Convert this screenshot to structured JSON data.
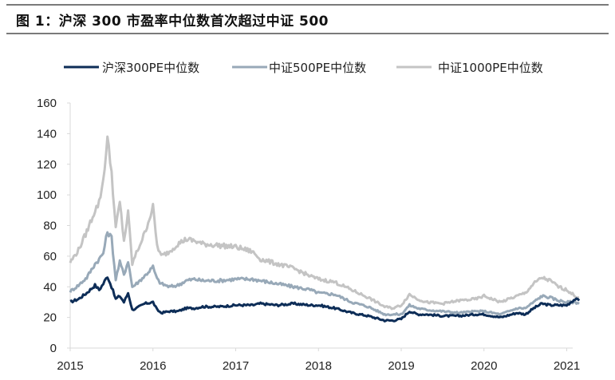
{
  "figure": {
    "title": "图 1：沪深 300 市盈率中位数首次超过中证 500"
  },
  "chart_data": {
    "type": "line",
    "title": "图 1：沪深 300 市盈率中位数首次超过中证 500",
    "xlabel": "",
    "ylabel": "",
    "xlim": [
      2015,
      2021.2
    ],
    "ylim": [
      0,
      160
    ],
    "y_ticks": [
      "0",
      "20",
      "40",
      "60",
      "80",
      "100",
      "120",
      "140",
      "160"
    ],
    "x_ticks": [
      "2015",
      "2016",
      "2017",
      "2018",
      "2019",
      "2020",
      "2021"
    ],
    "legend_position": "top",
    "grid": false,
    "x": [
      2015.0,
      2015.1,
      2015.2,
      2015.3,
      2015.35,
      2015.4,
      2015.45,
      2015.5,
      2015.55,
      2015.6,
      2015.65,
      2015.7,
      2015.75,
      2015.8,
      2015.9,
      2016.0,
      2016.05,
      2016.1,
      2016.2,
      2016.3,
      2016.4,
      2016.5,
      2016.6,
      2016.8,
      2017.0,
      2017.2,
      2017.3,
      2017.5,
      2017.7,
      2017.9,
      2018.0,
      2018.2,
      2018.4,
      2018.6,
      2018.8,
      2018.9,
      2019.0,
      2019.1,
      2019.2,
      2019.3,
      2019.5,
      2019.7,
      2019.9,
      2020.0,
      2020.2,
      2020.4,
      2020.5,
      2020.6,
      2020.7,
      2020.8,
      2020.9,
      2021.0,
      2021.1,
      2021.15
    ],
    "series": [
      {
        "name": "沪深300PE中位数",
        "color": "#0d2d57",
        "values": [
          30,
          32,
          36,
          41,
          38,
          42,
          47,
          40,
          32,
          34,
          30,
          36,
          25,
          26,
          29,
          30,
          25,
          23,
          24,
          24,
          26,
          26,
          27,
          27,
          28,
          28,
          29,
          28,
          29,
          28,
          28,
          26,
          23,
          21,
          18,
          18,
          19,
          24,
          22,
          22,
          21,
          21,
          22,
          22,
          20,
          23,
          22,
          26,
          29,
          28,
          28,
          28,
          32,
          31
        ]
      },
      {
        "name": "中证500PE中位数",
        "color": "#98a9b8",
        "values": [
          37,
          41,
          46,
          55,
          58,
          62,
          76,
          72,
          45,
          56,
          48,
          57,
          40,
          42,
          47,
          53,
          45,
          42,
          40,
          41,
          44,
          45,
          44,
          44,
          45,
          45,
          44,
          42,
          40,
          38,
          36,
          35,
          30,
          27,
          22,
          22,
          22,
          28,
          26,
          25,
          24,
          23,
          24,
          24,
          22,
          26,
          26,
          30,
          34,
          33,
          31,
          30,
          30,
          29
        ]
      },
      {
        "name": "中证1000PE中位数",
        "color": "#c4c4c4",
        "values": [
          56,
          64,
          76,
          90,
          95,
          110,
          137,
          115,
          78,
          95,
          70,
          88,
          55,
          62,
          75,
          92,
          67,
          60,
          63,
          68,
          71,
          70,
          68,
          67,
          66,
          63,
          58,
          55,
          52,
          47,
          45,
          43,
          38,
          33,
          27,
          26,
          28,
          35,
          32,
          30,
          29,
          31,
          32,
          34,
          30,
          34,
          36,
          42,
          46,
          44,
          40,
          38,
          34,
          33
        ]
      }
    ]
  }
}
